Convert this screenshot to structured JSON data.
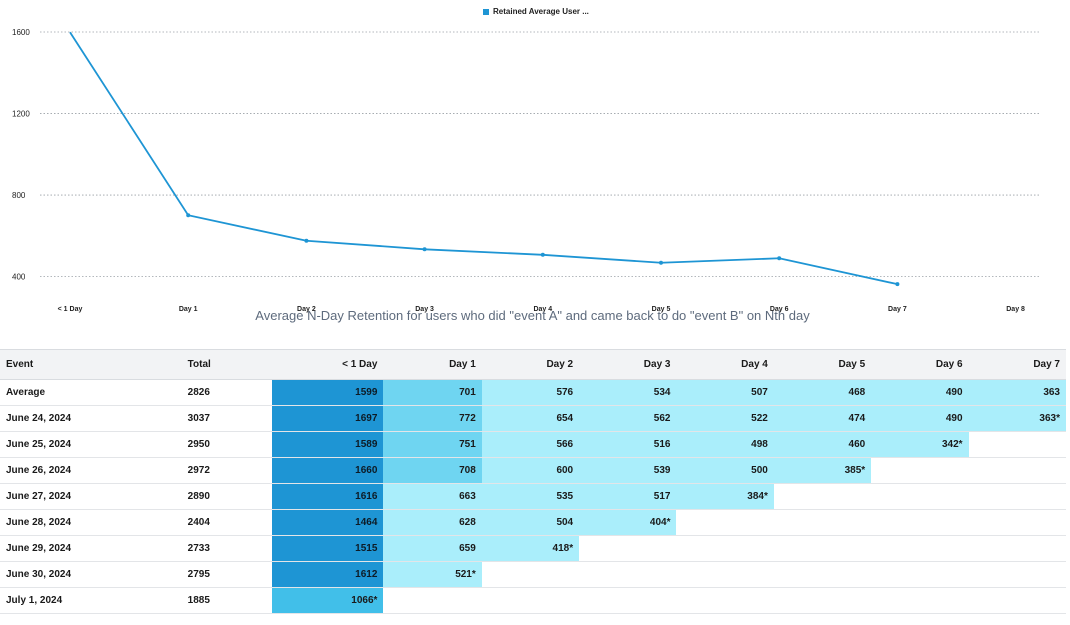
{
  "legend": {
    "label": "Retained Average User ...",
    "color": "#1e95d4"
  },
  "subtitle": "Average N-Day Retention for users who did \"event A\" and came back to do \"event B\" on Nth day",
  "chart_data": {
    "type": "line",
    "x": [
      "< 1 Day",
      "Day 1",
      "Day 2",
      "Day 3",
      "Day 4",
      "Day 5",
      "Day 6",
      "Day 7",
      "Day 8"
    ],
    "series": [
      {
        "name": "Retained Average User ...",
        "values": [
          1599,
          701,
          576,
          534,
          507,
          468,
          490,
          363,
          null
        ]
      }
    ],
    "yticks": [
      400,
      800,
      1200,
      1600
    ],
    "ylim": [
      300,
      1600
    ],
    "grid": true,
    "legend_position": "top-center",
    "line_color": "#1e95d4"
  },
  "table": {
    "headers": [
      "Event",
      "Total",
      "< 1 Day",
      "Day 1",
      "Day 2",
      "Day 3",
      "Day 4",
      "Day 5",
      "Day 6",
      "Day 7"
    ],
    "rows": [
      {
        "event": "Average",
        "total": "2826",
        "cells": [
          "1599",
          "701",
          "576",
          "534",
          "507",
          "468",
          "490",
          "363"
        ]
      },
      {
        "event": "June 24, 2024",
        "total": "3037",
        "cells": [
          "1697",
          "772",
          "654",
          "562",
          "522",
          "474",
          "490",
          "363*"
        ]
      },
      {
        "event": "June 25, 2024",
        "total": "2950",
        "cells": [
          "1589",
          "751",
          "566",
          "516",
          "498",
          "460",
          "342*"
        ]
      },
      {
        "event": "June 26, 2024",
        "total": "2972",
        "cells": [
          "1660",
          "708",
          "600",
          "539",
          "500",
          "385*"
        ]
      },
      {
        "event": "June 27, 2024",
        "total": "2890",
        "cells": [
          "1616",
          "663",
          "535",
          "517",
          "384*"
        ]
      },
      {
        "event": "June 28, 2024",
        "total": "2404",
        "cells": [
          "1464",
          "628",
          "504",
          "404*"
        ]
      },
      {
        "event": "June 29, 2024",
        "total": "2733",
        "cells": [
          "1515",
          "659",
          "418*"
        ]
      },
      {
        "event": "June 30, 2024",
        "total": "2795",
        "cells": [
          "1612",
          "521*"
        ]
      },
      {
        "event": "July 1, 2024",
        "total": "1885",
        "cells": [
          "1066*"
        ]
      }
    ]
  },
  "colors": {
    "dark": "#1e95d4",
    "mid": "#6fd5f1",
    "light": "#aaeefb",
    "bottom": "#41bfe9"
  }
}
